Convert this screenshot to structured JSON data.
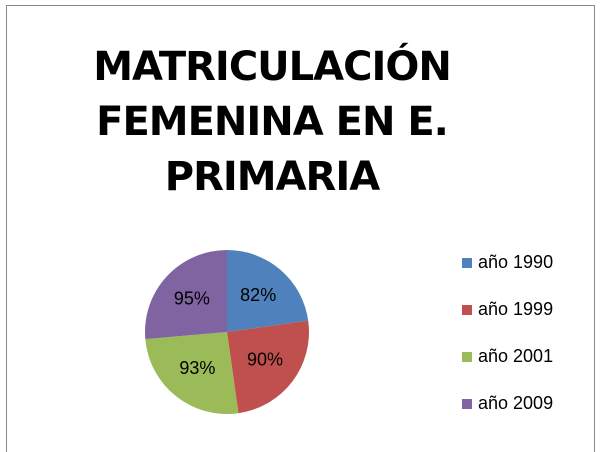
{
  "chart_data": {
    "type": "pie",
    "title": "MATRICULACIÓN FEMENINA EN E. PRIMARIA",
    "categories": [
      "año 1990",
      "año 1999",
      "año 2001",
      "año 2009"
    ],
    "values": [
      82,
      90,
      93,
      95
    ],
    "value_labels": [
      "82%",
      "90%",
      "93%",
      "95%"
    ],
    "colors": [
      "#4f81bd",
      "#c0504d",
      "#9bbb59",
      "#8064a2"
    ],
    "legend": "right"
  }
}
